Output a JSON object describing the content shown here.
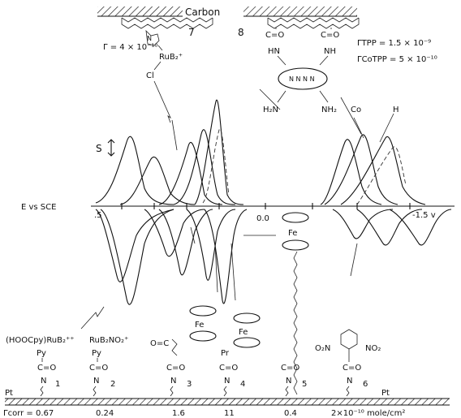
{
  "labels": {
    "carbon": "Carbon",
    "num7": "7",
    "num8": "8",
    "gamma_ru": "Γ = 4 × 10⁻¹⁰",
    "gamma_tpp": "ΓTPP = 1.5 × 10⁻⁹",
    "gamma_cotpp": "ΓCoTPP = 5 × 10⁻¹⁰",
    "ru_complex": "RuB₂⁺",
    "cl": "Cl",
    "n_label": "N",
    "co": "Co",
    "h": "H",
    "hn_left": "HN",
    "nh_right": "NH",
    "co_amide": "C=O",
    "h2n": "H₂N",
    "nh2": "NH₂",
    "s_label": "S",
    "e_vs_sce": "E vs SCE",
    "tick_left": ".5",
    "tick_zero": "0.0",
    "tick_right": "-1.5 v",
    "fe": "Fe",
    "pt_left": "Pt",
    "pt_right": "Pt"
  },
  "bottom_structures": [
    {
      "top": "(HOOCpy)RuB₂⁺⁺",
      "l2": "Py",
      "l3": "C=O",
      "l4": "N",
      "num": "1"
    },
    {
      "top": "RuB₂NO₂⁺",
      "l2": "Py",
      "l3": "C=O",
      "l4": "N",
      "num": "2"
    },
    {
      "top": "O=C",
      "l2": "",
      "l3": "C=O",
      "l4": "N",
      "num": "3"
    },
    {
      "top": "Pr",
      "l2": "",
      "l3": "C=O",
      "l4": "N",
      "num": "4"
    },
    {
      "top": "C=O",
      "l2": "",
      "l3": "",
      "l4": "N",
      "num": "5"
    },
    {
      "top": "O₂N",
      "l2": "NO₂",
      "l3": "C=O",
      "l4": "N",
      "num": "6"
    }
  ],
  "coverage": {
    "gamma_corr": "Γcorr = 0.67",
    "v1": "0.24",
    "v2": "1.6",
    "v3": "11",
    "v4": "0.4",
    "unit": "2×10⁻¹⁰ mole/cm²"
  }
}
